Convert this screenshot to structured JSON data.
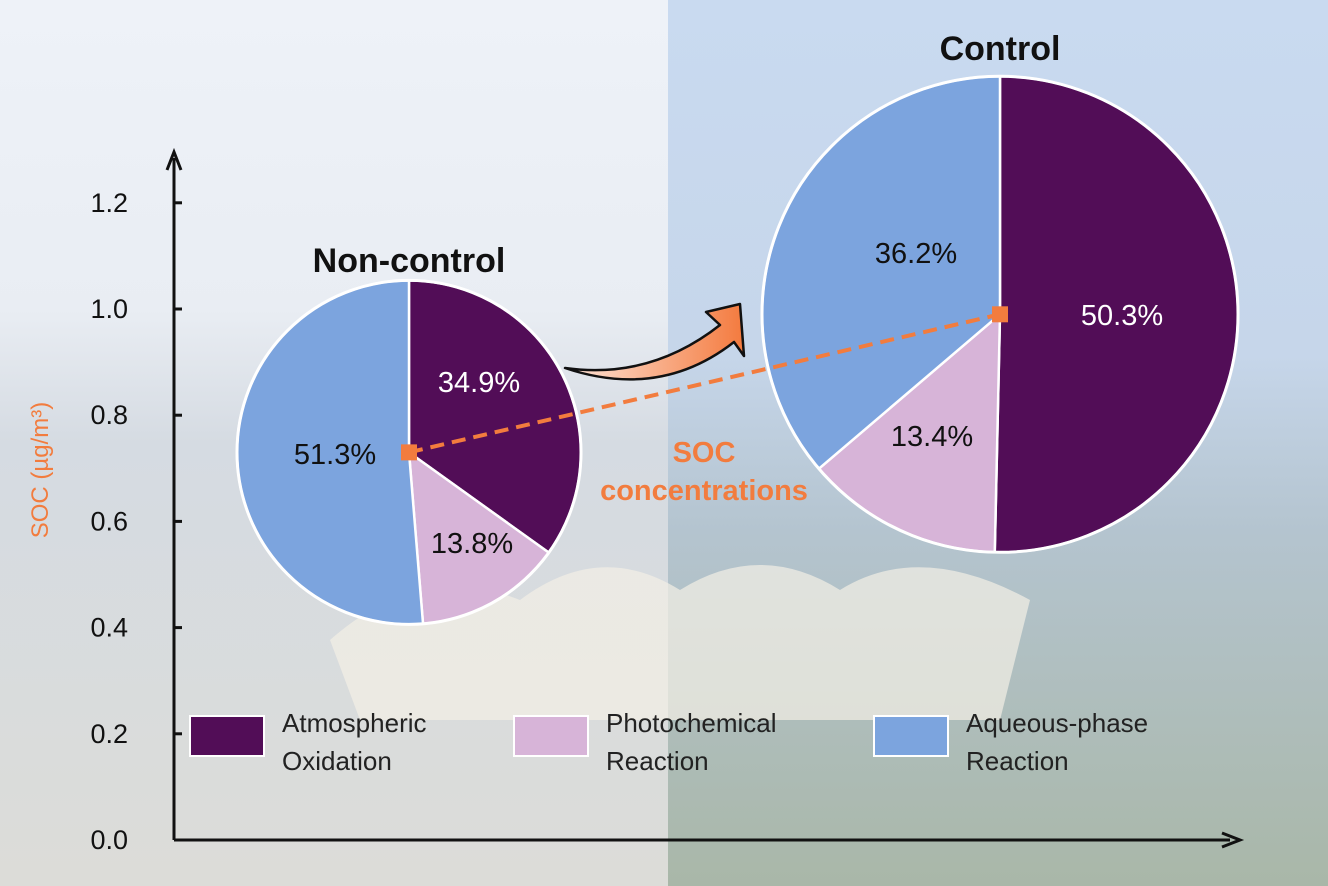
{
  "chart_data": {
    "type": "pie",
    "ylabel": "SOC (µg/m³)",
    "yticks": [
      "0.0",
      "0.2",
      "0.4",
      "0.6",
      "0.8",
      "1.0",
      "1.2"
    ],
    "ylim": [
      0,
      1.2
    ],
    "annotation": [
      "SOC",
      "concentrations"
    ],
    "categories": [
      "Atmospheric Oxidation",
      "Photochemical Reaction",
      "Aqueous-phase Reaction"
    ],
    "legend": [
      {
        "line1": "Atmospheric",
        "line2": "Oxidation",
        "color": "#520d57"
      },
      {
        "line1": "Photochemical",
        "line2": "Reaction",
        "color": "#d7b4d8"
      },
      {
        "line1": "Aqueous-phase",
        "line2": "Reaction",
        "color": "#7ca4de"
      }
    ],
    "pies": [
      {
        "title": "Non-control",
        "soc": 0.73,
        "values": [
          34.9,
          13.8,
          51.3
        ],
        "labels": [
          "34.9%",
          "13.8%",
          "51.3%"
        ]
      },
      {
        "title": "Control",
        "soc": 0.99,
        "values": [
          50.3,
          13.4,
          36.2
        ],
        "labels": [
          "50.3%",
          "13.4%",
          "36.2%"
        ]
      }
    ],
    "colors": {
      "accent": "#f27c3e",
      "axis": "#111111"
    }
  }
}
